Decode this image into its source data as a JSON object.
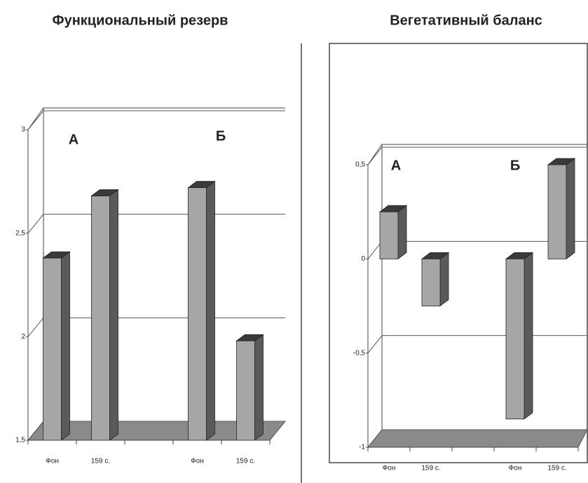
{
  "chart_data": [
    {
      "type": "bar3d",
      "title": "Функциональный резерв",
      "categories": [
        "Фон",
        "159 с.",
        "Фон",
        "159 с."
      ],
      "values": [
        2.38,
        2.68,
        2.72,
        1.98
      ],
      "color": "#a6a6a6",
      "ylim": [
        1.5,
        3
      ],
      "yticks": [
        {
          "value": 1.5,
          "label": "1,5"
        },
        2,
        {
          "value": 2.5,
          "label": "2,5"
        },
        3
      ],
      "grid": true,
      "annotations": [
        "А",
        "Б"
      ]
    },
    {
      "type": "bar3d",
      "title": "Вегетативный баланс",
      "categories": [
        "Фон",
        "159 с.",
        "Фон",
        "159 с."
      ],
      "values": [
        0.25,
        -0.25,
        -0.85,
        0.5
      ],
      "color": "#a6a6a6",
      "ylim": [
        -1,
        0.5
      ],
      "yticks": [
        -1,
        {
          "value": -0.5,
          "label": "-0,5"
        },
        0,
        {
          "value": 0.5,
          "label": "0,5"
        }
      ],
      "grid": true,
      "annotations": [
        "А",
        "Б"
      ]
    }
  ]
}
